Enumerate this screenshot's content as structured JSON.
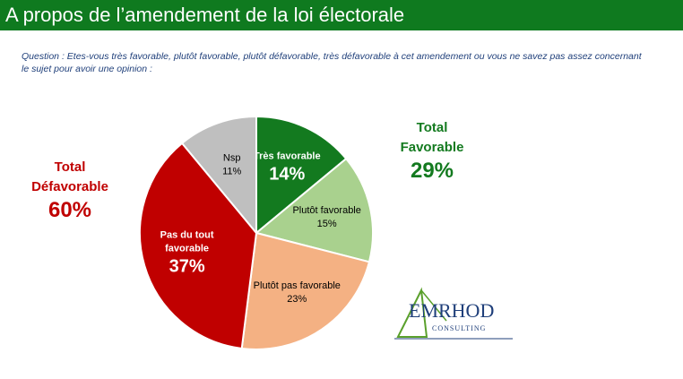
{
  "header": {
    "title": "A propos de l’amendement de la loi électorale"
  },
  "question": "Question : Etes-vous très favorable, plutôt favorable, plutôt défavorable, très défavorable à cet amendement ou vous ne savez pas assez concernant le sujet pour avoir une opinion :",
  "totals": {
    "favorable": {
      "label_line1": "Total",
      "label_line2": "Favorable",
      "value": "29%"
    },
    "defavorable": {
      "label_line1": "Total",
      "label_line2": "Défavorable",
      "value": "60%"
    }
  },
  "logo": {
    "word": "EMRHOD",
    "sub": "CONSULTING"
  },
  "chart_data": {
    "type": "pie",
    "slices": [
      {
        "label": "Très favorable",
        "value": 14,
        "display": "14%",
        "color": "#137a1f",
        "text_color": "#ffffff"
      },
      {
        "label": "Plutôt favorable",
        "value": 15,
        "display": "15%",
        "color": "#a9d18e",
        "text_color": "#000000"
      },
      {
        "label": "Plutôt pas favorable",
        "value": 23,
        "display": "23%",
        "color": "#f4b183",
        "text_color": "#000000"
      },
      {
        "label": "Pas du tout favorable",
        "value": 37,
        "display": "37%",
        "color": "#c00000",
        "text_color": "#ffffff"
      },
      {
        "label": "Nsp",
        "value": 11,
        "display": "11%",
        "color": "#bfbfbf",
        "text_color": "#000000"
      }
    ],
    "start_angle_deg": 0,
    "direction": "clockwise"
  }
}
